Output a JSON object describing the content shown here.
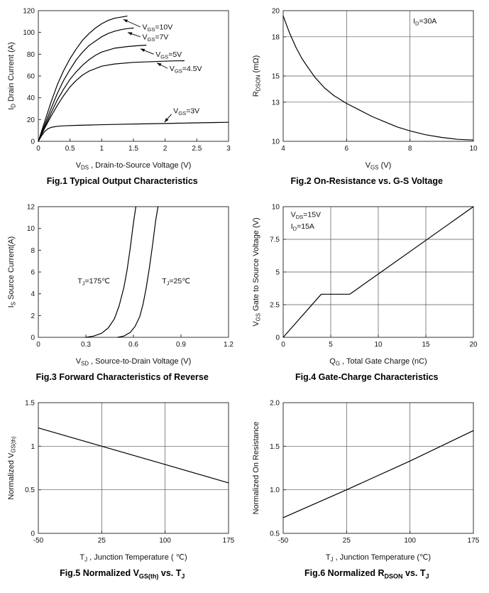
{
  "page": {
    "background": "#ffffff"
  },
  "chart_data": [
    {
      "id": "fig1",
      "type": "line",
      "caption": "Fig.1 Typical Output Characteristics",
      "xlabel": "V~DS~ , Drain-to-Source Voltage (V)",
      "ylabel": "I~D~ Drain Current (A)",
      "xlim": [
        0,
        3
      ],
      "ylim": [
        0,
        120
      ],
      "xticks": [
        0,
        0.5,
        1,
        1.5,
        2,
        2.5,
        3
      ],
      "yticks": [
        0,
        20,
        40,
        60,
        80,
        100,
        120
      ],
      "gridx": [],
      "gridy": [],
      "series": [
        {
          "name": "V~GS~=10V",
          "x": [
            0,
            0.1,
            0.2,
            0.3,
            0.4,
            0.5,
            0.6,
            0.7,
            0.8,
            0.9,
            1.0,
            1.1,
            1.2,
            1.3,
            1.4
          ],
          "y": [
            0,
            18,
            36,
            52,
            65,
            76,
            85,
            93,
            99,
            104,
            108,
            111,
            113,
            114,
            115
          ],
          "label": {
            "text": "V~GS~=10V",
            "x": 1.64,
            "y": 105,
            "anchor": "start"
          },
          "leader": {
            "x1": 1.61,
            "y1": 105,
            "x2": 1.34,
            "y2": 112
          }
        },
        {
          "name": "V~GS~=7V",
          "x": [
            0,
            0.1,
            0.2,
            0.3,
            0.4,
            0.5,
            0.6,
            0.7,
            0.8,
            0.9,
            1.0,
            1.1,
            1.2,
            1.3,
            1.4,
            1.5
          ],
          "y": [
            0,
            15,
            30,
            44,
            56,
            66,
            75,
            82,
            88,
            92,
            96,
            99,
            101,
            102.5,
            103.5,
            104
          ],
          "label": {
            "text": "V~GS~=7V",
            "x": 1.64,
            "y": 96,
            "anchor": "start"
          },
          "leader": {
            "x1": 1.61,
            "y1": 96,
            "x2": 1.41,
            "y2": 100
          }
        },
        {
          "name": "V~GS~=5V",
          "x": [
            0,
            0.1,
            0.2,
            0.3,
            0.4,
            0.5,
            0.6,
            0.7,
            0.8,
            0.9,
            1.0,
            1.2,
            1.4,
            1.6,
            1.7
          ],
          "y": [
            0,
            13,
            26,
            38,
            48,
            57,
            64,
            70,
            75,
            79,
            82,
            85.5,
            87,
            88,
            88.3
          ],
          "label": {
            "text": "V~GS~=5V",
            "x": 1.85,
            "y": 80,
            "anchor": "start"
          },
          "leader": {
            "x1": 1.82,
            "y1": 80,
            "x2": 1.61,
            "y2": 85
          }
        },
        {
          "name": "V~GS~=4.5V",
          "x": [
            0,
            0.1,
            0.2,
            0.3,
            0.4,
            0.5,
            0.6,
            0.7,
            0.8,
            1.0,
            1.2,
            1.5,
            1.8,
            2.1,
            2.3
          ],
          "y": [
            0,
            12,
            23,
            33,
            42,
            50,
            56,
            61,
            64.5,
            69,
            71,
            72.5,
            73.2,
            73.8,
            74
          ],
          "label": {
            "text": "V~GS~=4.5V",
            "x": 2.07,
            "y": 67,
            "anchor": "start"
          },
          "leader": {
            "x1": 2.04,
            "y1": 67,
            "x2": 1.87,
            "y2": 72
          }
        },
        {
          "name": "V~GS~=3V",
          "x": [
            0,
            0.05,
            0.1,
            0.15,
            0.2,
            0.3,
            0.4,
            0.6,
            0.9,
            1.2,
            1.6,
            2.0,
            2.4,
            2.8,
            3.0
          ],
          "y": [
            0,
            5,
            9,
            11.5,
            12.8,
            13.8,
            14.2,
            14.7,
            15.1,
            15.5,
            16,
            16.4,
            16.9,
            17.3,
            17.5
          ],
          "label": {
            "text": "V~GS~=3V",
            "x": 2.13,
            "y": 28,
            "anchor": "start"
          },
          "leader": {
            "x1": 2.1,
            "y1": 25,
            "x2": 1.99,
            "y2": 17.5
          }
        }
      ],
      "annotations": []
    },
    {
      "id": "fig2",
      "type": "line",
      "caption": "Fig.2 On-Resistance vs. G-S Voltage",
      "xlabel": "V~GS~ (V)",
      "ylabel": "R~DSON~ (mΩ)",
      "xlim": [
        4,
        10
      ],
      "ylim": [
        10,
        20
      ],
      "xticks": [
        4,
        6,
        8,
        10
      ],
      "yticks": [
        10,
        13,
        15,
        18,
        20
      ],
      "gridx": [
        6,
        8
      ],
      "gridy": [
        13,
        15,
        18
      ],
      "series": [
        {
          "name": "on-resistance",
          "x": [
            4,
            4.2,
            4.4,
            4.6,
            4.8,
            5,
            5.3,
            5.6,
            6,
            6.4,
            6.8,
            7.2,
            7.6,
            8,
            8.5,
            9,
            9.5,
            10
          ],
          "y": [
            19.6,
            18.3,
            17.2,
            16.3,
            15.6,
            14.9,
            14.1,
            13.5,
            12.9,
            12.4,
            11.9,
            11.5,
            11.1,
            10.8,
            10.5,
            10.3,
            10.15,
            10.1
          ]
        }
      ],
      "annotations": [
        {
          "text": "I~D~=30A",
          "x": 8.1,
          "y": 19.2,
          "anchor": "start"
        }
      ]
    },
    {
      "id": "fig3",
      "type": "line",
      "caption": "Fig.3 Forward Characteristics of Reverse",
      "xlabel": "V~SD~ , Source-to-Drain Voltage (V)",
      "ylabel": "I~S~ Source Current(A)",
      "xlim": [
        0,
        1.2
      ],
      "ylim": [
        0,
        12
      ],
      "xticks": [
        0,
        0.3,
        0.6,
        0.9,
        1.2
      ],
      "yticks": [
        0,
        2,
        4,
        6,
        8,
        10,
        12
      ],
      "gridx": [],
      "gridy": [],
      "series": [
        {
          "name": "T~J~=175℃",
          "x": [
            0.3,
            0.35,
            0.4,
            0.44,
            0.48,
            0.51,
            0.54,
            0.56,
            0.58,
            0.6,
            0.615
          ],
          "y": [
            0,
            0.12,
            0.38,
            0.85,
            1.7,
            2.9,
            4.6,
            6.2,
            8.2,
            10.5,
            12
          ],
          "label": {
            "text": "T~J~=175℃",
            "x": 0.35,
            "y": 5.2,
            "anchor": "middle"
          }
        },
        {
          "name": "T~J~=25℃",
          "x": [
            0.5,
            0.54,
            0.58,
            0.61,
            0.64,
            0.66,
            0.68,
            0.7,
            0.72,
            0.74,
            0.755
          ],
          "y": [
            0,
            0.12,
            0.45,
            1.0,
            1.9,
            3.0,
            4.5,
            6.3,
            8.4,
            10.7,
            12
          ],
          "label": {
            "text": "T~J~=25℃",
            "x": 0.78,
            "y": 5.2,
            "anchor": "start"
          }
        }
      ],
      "annotations": []
    },
    {
      "id": "fig4",
      "type": "line",
      "caption": "Fig.4 Gate-Charge Characteristics",
      "xlabel": "Q~G~ , Total Gate Charge (nC)",
      "ylabel": "V~GS~  Gate to Source Voltage (V)",
      "xlim": [
        0,
        20
      ],
      "ylim": [
        0,
        10
      ],
      "xticks": [
        0,
        5,
        10,
        15,
        20
      ],
      "yticks": [
        0,
        2.5,
        5,
        7.5,
        10
      ],
      "gridx": [
        5,
        10,
        15
      ],
      "gridy": [
        2.5,
        5,
        7.5
      ],
      "series": [
        {
          "name": "gate-charge",
          "x": [
            0,
            4,
            7,
            20
          ],
          "y": [
            0,
            3.3,
            3.3,
            10
          ]
        }
      ],
      "annotations": [
        {
          "text": "V~DS~=15V",
          "x": 0.8,
          "y": 9.4,
          "anchor": "start"
        },
        {
          "text": "I~D~=15A",
          "x": 0.8,
          "y": 8.5,
          "anchor": "start"
        }
      ]
    },
    {
      "id": "fig5",
      "type": "line",
      "caption": "Fig.5 Normalized V~GS(th)~ vs. T~J~",
      "xlabel": "T~J~ , Junction Temperature ( ℃)",
      "ylabel": "Normalized V~GS(th)~",
      "xlim": [
        -50,
        175
      ],
      "ylim": [
        0,
        1.5
      ],
      "xticks": [
        -50,
        25,
        100,
        175
      ],
      "yticks": [
        0,
        0.5,
        1,
        1.5
      ],
      "gridx": [
        25,
        100
      ],
      "gridy": [
        0.5,
        1
      ],
      "series": [
        {
          "name": "normalized-vgsth",
          "x": [
            -50,
            25,
            100,
            175
          ],
          "y": [
            1.21,
            1.0,
            0.79,
            0.58
          ]
        }
      ],
      "annotations": []
    },
    {
      "id": "fig6",
      "type": "line",
      "caption": "Fig.6 Normalized R~DSON~ vs. T~J~",
      "xlabel": "T~J~ , Junction Temperature (℃)",
      "ylabel": "Normalized On Resistance",
      "xlim": [
        -50,
        175
      ],
      "ylim": [
        0.5,
        2
      ],
      "xticks": [
        -50,
        25,
        100,
        175
      ],
      "yticks": [
        0.5,
        1,
        1.5,
        2
      ],
      "yticklabels": [
        "0.5",
        "1.0",
        "1.5",
        "2.0"
      ],
      "gridx": [
        25,
        100
      ],
      "gridy": [
        1,
        1.5
      ],
      "series": [
        {
          "name": "normalized-rdson",
          "x": [
            -50,
            25,
            100,
            175
          ],
          "y": [
            0.68,
            1.0,
            1.33,
            1.68
          ]
        }
      ],
      "annotations": []
    }
  ]
}
